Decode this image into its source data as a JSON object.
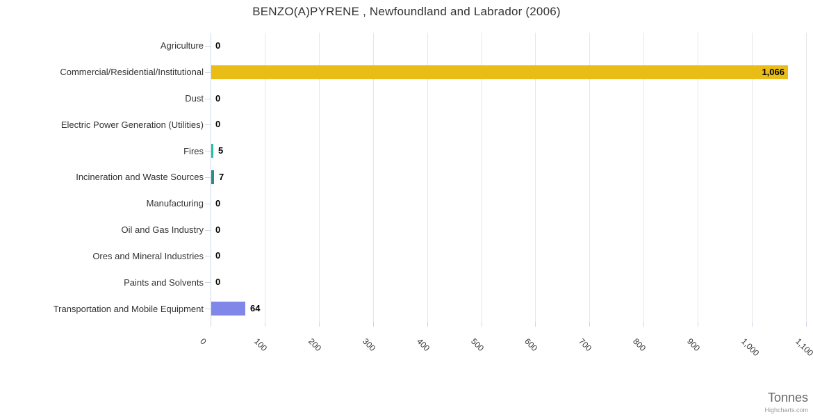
{
  "title": "BENZO(A)PYRENE , Newfoundland and Labrador (2006)",
  "credits_label": "Highcharts.com",
  "chart_data": {
    "type": "bar",
    "orientation": "horizontal",
    "title": "BENZO(A)PYRENE , Newfoundland and Labrador (2006)",
    "categories": [
      "Agriculture",
      "Commercial/Residential/Institutional",
      "Dust",
      "Electric Power Generation (Utilities)",
      "Fires",
      "Incineration and Waste Sources",
      "Manufacturing",
      "Oil and Gas Industry",
      "Ores and Mineral Industries",
      "Paints and Solvents",
      "Transportation and Mobile Equipment"
    ],
    "values": [
      0,
      1066,
      0,
      0,
      5,
      7,
      0,
      0,
      0,
      0,
      64
    ],
    "value_labels": [
      "0",
      "1,066",
      "0",
      "0",
      "5",
      "7",
      "0",
      "0",
      "0",
      "0",
      "64"
    ],
    "bar_colors": [
      null,
      "#eabc16",
      null,
      null,
      "#23bfa2",
      "#2e8b8b",
      null,
      null,
      null,
      null,
      "#8187e8"
    ],
    "default_bar_color": "#7cb5ec",
    "xlabel": "Tonnes",
    "ylabel": "",
    "xlim": [
      0,
      1100
    ],
    "x_ticks": [
      "0",
      "100",
      "200",
      "300",
      "400",
      "500",
      "600",
      "700",
      "800",
      "900",
      "1,000",
      "1,100"
    ],
    "grid": "vertical-only",
    "legend": false,
    "styling": {
      "grid_color": "#e6e6e6",
      "axis_color": "#ccd6eb",
      "title_color": "#333333",
      "label_color": "#333333",
      "value_label_color": "#000000",
      "axis_title_color": "#666666",
      "credits_color": "#999999"
    }
  }
}
